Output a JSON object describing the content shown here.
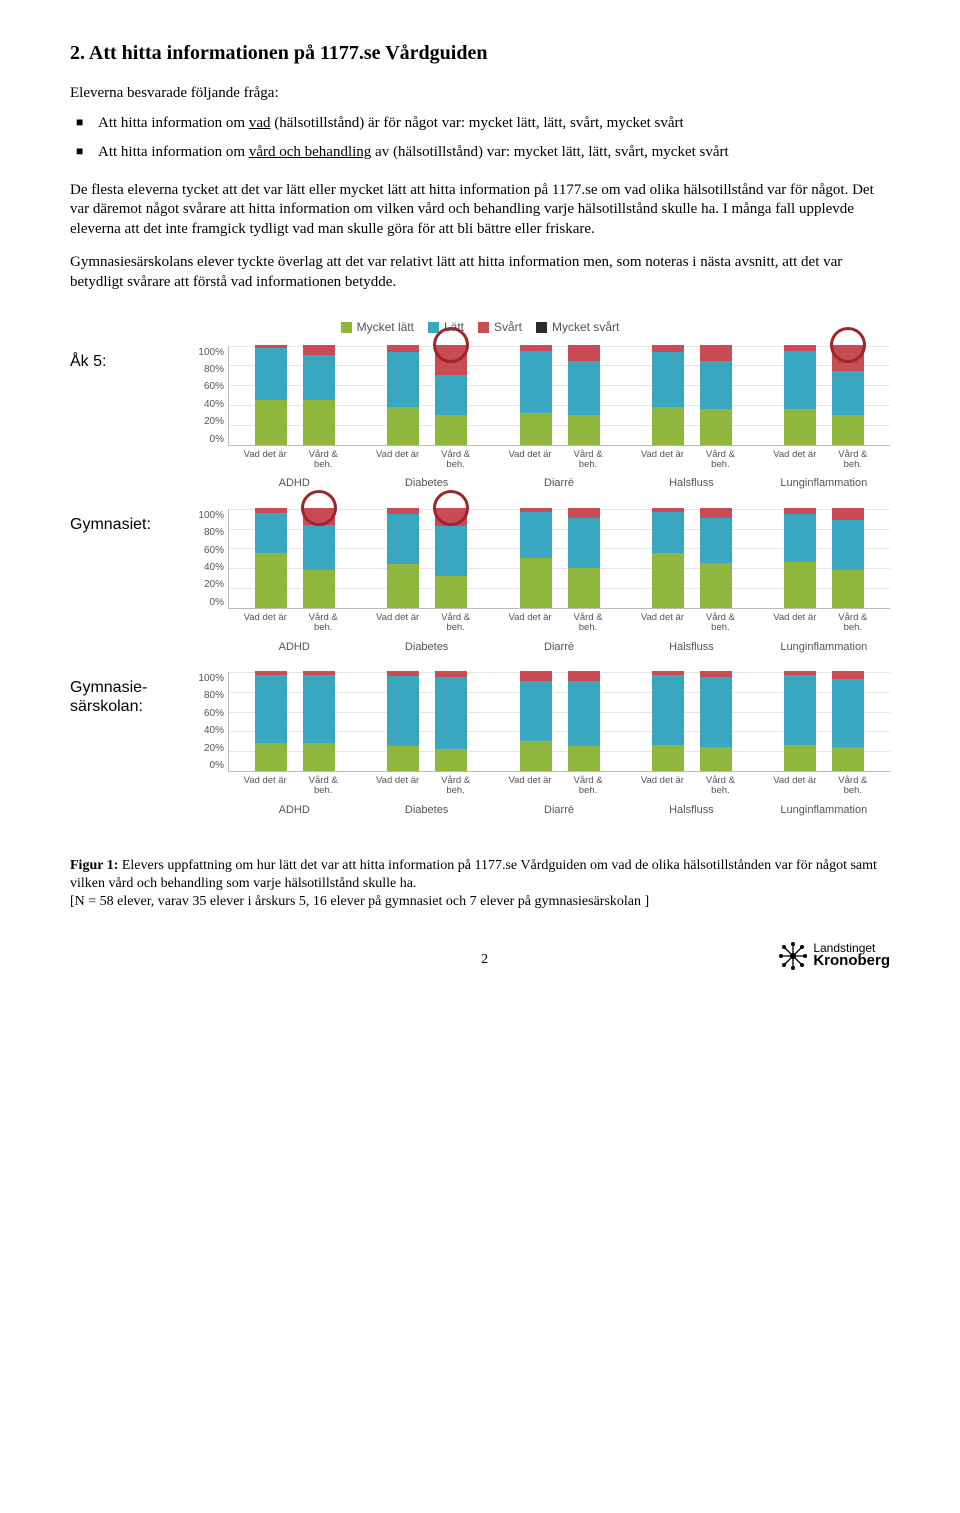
{
  "colors": {
    "mycket_latt": "#8fb73e",
    "latt": "#3aa7c1",
    "svart": "#c94b53",
    "mycket_svart": "#2b2b2b",
    "grid": "#e6e6e6",
    "axis": "#bbbbbb",
    "circle": "#9c262a",
    "text_muted": "#555555"
  },
  "heading": "2. Att hitta informationen på 1177.se Vårdguiden",
  "intro": "Eleverna besvarade följande fråga:",
  "bullets": [
    {
      "pre": "Att hitta information om ",
      "u": "vad",
      "post": " (hälsotillstånd) är för något var: mycket lätt, lätt, svårt, mycket svårt"
    },
    {
      "pre": "Att hitta information om ",
      "u": "vård och behandling",
      "post": " av (hälsotillstånd) var: mycket lätt, lätt, svårt, mycket svårt"
    }
  ],
  "para1": "De flesta eleverna tycket att det var lätt eller mycket lätt att hitta information på 1177.se om vad olika hälsotillstånd var för något. Det var däremot något svårare att hitta information om vilken vård och behandling varje hälsotillstånd skulle ha. I många fall upplevde eleverna att det inte framgick tydligt vad man skulle göra för att bli bättre eller friskare.",
  "para2": "Gymnasiesärskolans elever tyckte överlag att det var relativt lätt att hitta information men, som noteras i nästa avsnitt, att det var betydligt svårare att förstå vad informationen betydde.",
  "legend": {
    "items": [
      {
        "label": "Mycket lätt",
        "color_key": "mycket_latt"
      },
      {
        "label": "Lätt",
        "color_key": "latt"
      },
      {
        "label": "Svårt",
        "color_key": "svart"
      },
      {
        "label": "Mycket svårt",
        "color_key": "mycket_svart"
      }
    ]
  },
  "chart": {
    "type": "stacked-bar-grouped",
    "y_ticks": [
      "100%",
      "80%",
      "60%",
      "40%",
      "20%",
      "0%"
    ],
    "grid_positions_pct": [
      0,
      20,
      40,
      60,
      80
    ],
    "bar_labels": [
      "Vad det är",
      "Vård & beh."
    ],
    "conditions": [
      "ADHD",
      "Diabetes",
      "Diarré",
      "Halsfluss",
      "Lunginflammation"
    ],
    "panels": [
      {
        "label": "Åk 5:",
        "groups": [
          {
            "bars": [
              {
                "segments": [
                  45,
                  52,
                  3,
                  0
                ],
                "circle": false
              },
              {
                "segments": [
                  45,
                  45,
                  10,
                  0
                ],
                "circle": false
              }
            ]
          },
          {
            "bars": [
              {
                "segments": [
                  38,
                  55,
                  7,
                  0
                ],
                "circle": false
              },
              {
                "segments": [
                  30,
                  40,
                  30,
                  0
                ],
                "circle": true
              }
            ]
          },
          {
            "bars": [
              {
                "segments": [
                  32,
                  62,
                  6,
                  0
                ],
                "circle": false
              },
              {
                "segments": [
                  30,
                  54,
                  16,
                  0
                ],
                "circle": false
              }
            ]
          },
          {
            "bars": [
              {
                "segments": [
                  38,
                  55,
                  7,
                  0
                ],
                "circle": false
              },
              {
                "segments": [
                  36,
                  48,
                  16,
                  0
                ],
                "circle": false
              }
            ]
          },
          {
            "bars": [
              {
                "segments": [
                  36,
                  58,
                  6,
                  0
                ],
                "circle": false
              },
              {
                "segments": [
                  30,
                  44,
                  26,
                  0
                ],
                "circle": true
              }
            ]
          }
        ]
      },
      {
        "label": "Gymnasiet:",
        "groups": [
          {
            "bars": [
              {
                "segments": [
                  55,
                  40,
                  5,
                  0
                ],
                "circle": false
              },
              {
                "segments": [
                  38,
                  45,
                  17,
                  0
                ],
                "circle": true
              }
            ]
          },
          {
            "bars": [
              {
                "segments": [
                  44,
                  50,
                  6,
                  0
                ],
                "circle": false
              },
              {
                "segments": [
                  32,
                  50,
                  18,
                  0
                ],
                "circle": true
              }
            ]
          },
          {
            "bars": [
              {
                "segments": [
                  50,
                  46,
                  4,
                  0
                ],
                "circle": false
              },
              {
                "segments": [
                  40,
                  50,
                  10,
                  0
                ],
                "circle": false
              }
            ]
          },
          {
            "bars": [
              {
                "segments": [
                  55,
                  41,
                  4,
                  0
                ],
                "circle": false
              },
              {
                "segments": [
                  45,
                  45,
                  10,
                  0
                ],
                "circle": false
              }
            ]
          },
          {
            "bars": [
              {
                "segments": [
                  46,
                  48,
                  6,
                  0
                ],
                "circle": false
              },
              {
                "segments": [
                  38,
                  50,
                  12,
                  0
                ],
                "circle": false
              }
            ]
          }
        ]
      },
      {
        "label": "Gymnasie-\nsärskolan:",
        "groups": [
          {
            "bars": [
              {
                "segments": [
                  28,
                  68,
                  4,
                  0
                ],
                "circle": false
              },
              {
                "segments": [
                  28,
                  68,
                  4,
                  0
                ],
                "circle": false
              }
            ]
          },
          {
            "bars": [
              {
                "segments": [
                  25,
                  70,
                  5,
                  0
                ],
                "circle": false
              },
              {
                "segments": [
                  22,
                  72,
                  6,
                  0
                ],
                "circle": false
              }
            ]
          },
          {
            "bars": [
              {
                "segments": [
                  30,
                  60,
                  10,
                  0
                ],
                "circle": false
              },
              {
                "segments": [
                  25,
                  65,
                  10,
                  0
                ],
                "circle": false
              }
            ]
          },
          {
            "bars": [
              {
                "segments": [
                  26,
                  70,
                  4,
                  0
                ],
                "circle": false
              },
              {
                "segments": [
                  24,
                  70,
                  6,
                  0
                ],
                "circle": false
              }
            ]
          },
          {
            "bars": [
              {
                "segments": [
                  26,
                  70,
                  4,
                  0
                ],
                "circle": false
              },
              {
                "segments": [
                  24,
                  68,
                  8,
                  0
                ],
                "circle": false
              }
            ]
          }
        ]
      }
    ]
  },
  "caption": {
    "lead": "Figur 1:",
    "text": " Elevers uppfattning om hur lätt det var att hitta information på 1177.se Vårdguiden om vad de olika hälsotillstånden var för något samt vilken vård och behandling som varje hälsotillstånd skulle ha.",
    "note": "[N = 58 elever, varav 35 elever i årskurs 5, 16 elever på gymnasiet och 7 elever på gymnasiesärskolan ]"
  },
  "page_number": "2",
  "logo": {
    "line1": "Landstinget",
    "line2": "Kronoberg"
  }
}
